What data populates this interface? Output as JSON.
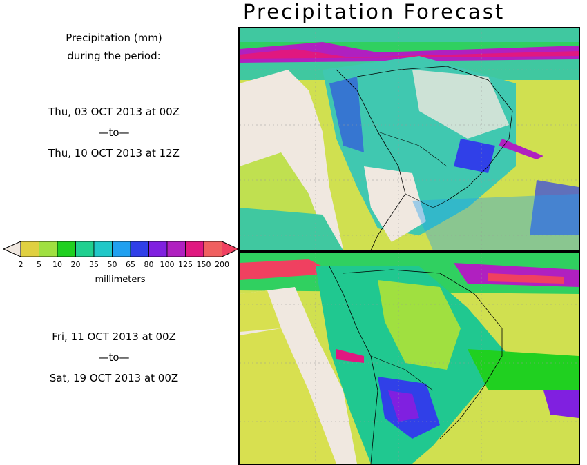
{
  "title": "Precipitation Forecast",
  "subtitle": {
    "line1": "Precipitation (mm)",
    "line2": "during the period:"
  },
  "period1": {
    "start": "Thu, 03 OCT 2013 at 00Z",
    "sep": "—to—",
    "end": "Thu, 10 OCT 2013 at 12Z"
  },
  "period2": {
    "start": "Fri, 11 OCT 2013 at 00Z",
    "sep": "—to—",
    "end": "Sat, 19 OCT 2013 at 00Z"
  },
  "legend": {
    "units": "millimeters",
    "ticks": [
      "2",
      "5",
      "10",
      "20",
      "35",
      "50",
      "65",
      "80",
      "100",
      "125",
      "150",
      "200"
    ],
    "under_color": "#f0e8e0",
    "colors": [
      "#e0d040",
      "#a0e040",
      "#20d020",
      "#20d090",
      "#20c8c8",
      "#20a0f0",
      "#3040e8",
      "#8020e0",
      "#b020c0",
      "#e01880"
    ],
    "over_color": "#f04060",
    "last_color": "#f06060"
  }
}
